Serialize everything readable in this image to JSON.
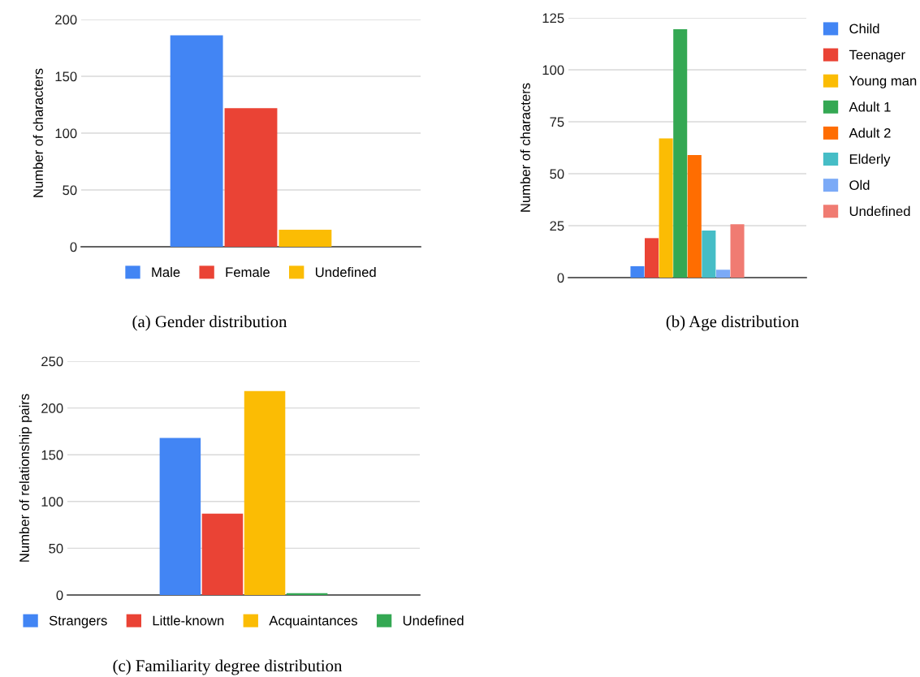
{
  "chart_data": [
    {
      "type": "bar",
      "categories": [
        null
      ],
      "ylabel": "Number of characters",
      "ylim": [
        0,
        200
      ],
      "yticks": [
        0,
        50,
        100,
        150,
        200
      ],
      "grid": "y",
      "legend": "bottom",
      "annotations": [
        "(a) Gender distribution"
      ],
      "series": [
        {
          "name": "Male",
          "color": "#4285f4",
          "values": [
            186
          ]
        },
        {
          "name": "Female",
          "color": "#ea4335",
          "values": [
            122
          ]
        },
        {
          "name": "Undefined",
          "color": "#fbbc04",
          "values": [
            15
          ]
        }
      ]
    },
    {
      "type": "bar",
      "categories": [
        null
      ],
      "ylabel": "Number of characters",
      "ylim": [
        0,
        125
      ],
      "yticks": [
        0,
        25,
        50,
        75,
        100,
        125
      ],
      "grid": "y",
      "legend": "right",
      "annotations": [
        "(b) Age distribution"
      ],
      "series": [
        {
          "name": "Child",
          "color": "#4285f4",
          "values": [
            5.5
          ]
        },
        {
          "name": "Teenager",
          "color": "#ea4335",
          "values": [
            19
          ]
        },
        {
          "name": "Young man",
          "color": "#fbbc04",
          "values": [
            67
          ]
        },
        {
          "name": "Adult 1",
          "color": "#34a853",
          "values": [
            119.5
          ]
        },
        {
          "name": "Adult 2",
          "color": "#ff6d01",
          "values": [
            59
          ]
        },
        {
          "name": "Elderly",
          "color": "#46bdc6",
          "values": [
            22.7
          ]
        },
        {
          "name": "Old",
          "color": "#7baaf7",
          "values": [
            3.8
          ]
        },
        {
          "name": "Undefined",
          "color": "#f07b72",
          "values": [
            25.7
          ]
        }
      ]
    },
    {
      "type": "bar",
      "categories": [
        null
      ],
      "ylabel": "Number of relationship pairs",
      "ylim": [
        0,
        250
      ],
      "yticks": [
        0,
        50,
        100,
        150,
        200,
        250
      ],
      "grid": "y",
      "legend": "bottom",
      "annotations": [
        "(c) Familiarity degree distribution"
      ],
      "series": [
        {
          "name": "Strangers",
          "color": "#4285f4",
          "values": [
            168
          ]
        },
        {
          "name": "Little-known",
          "color": "#ea4335",
          "values": [
            87
          ]
        },
        {
          "name": "Acquaintances",
          "color": "#fbbc04",
          "values": [
            218
          ]
        },
        {
          "name": "Undefined",
          "color": "#34a853",
          "values": [
            2
          ]
        }
      ]
    }
  ]
}
